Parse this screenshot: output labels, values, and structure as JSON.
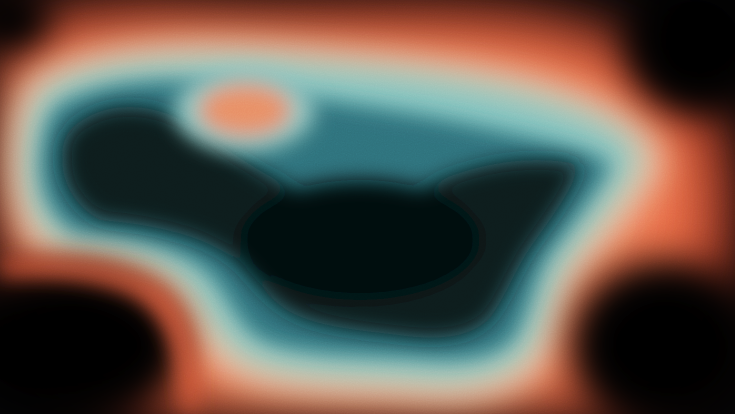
{
  "image": {
    "description_colors": {
      "warm_outer": "#e0583a",
      "warm_bright": "#f08a5c",
      "cream_edge": "#f2c9a8",
      "cyan_glow": "#6fb8b8",
      "teal_mid": "#2f6f7a",
      "dark_core": "#081418",
      "black": "#050506"
    }
  }
}
